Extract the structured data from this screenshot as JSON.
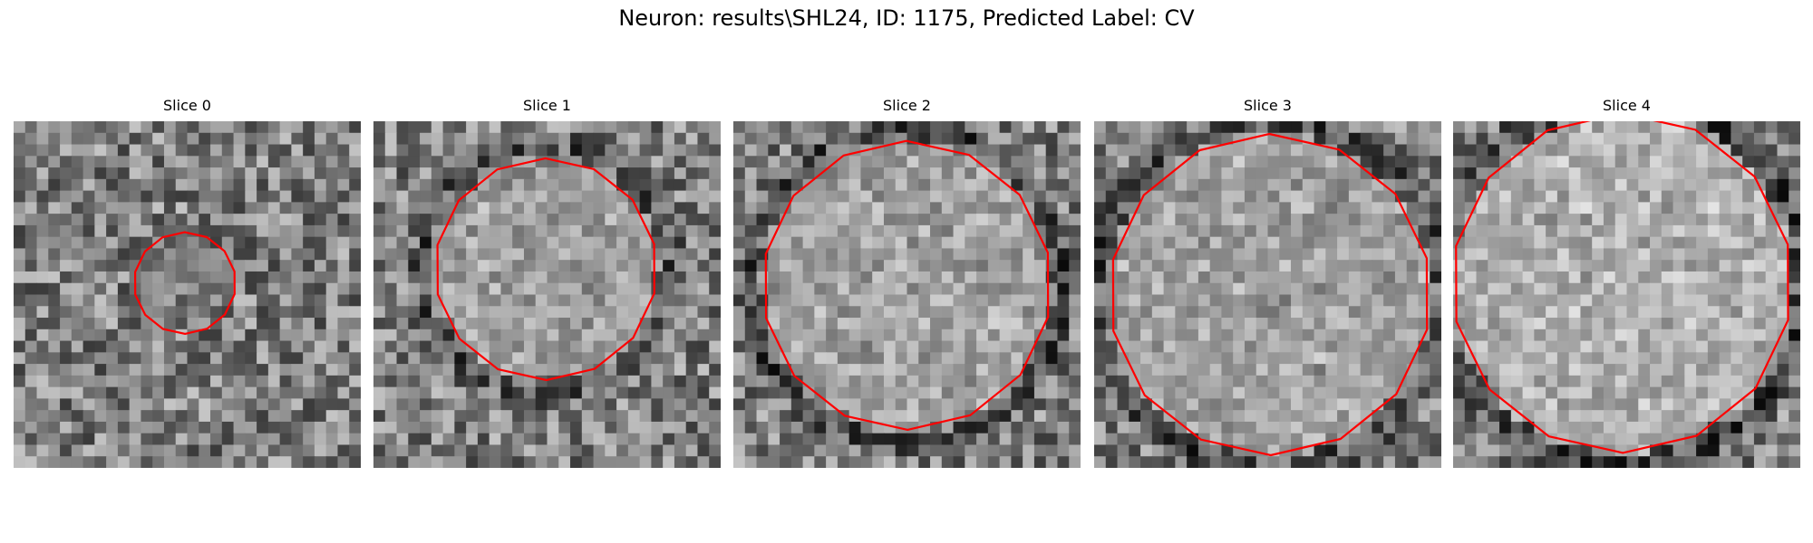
{
  "figure": {
    "title": "Neuron: results\\SHL24, ID: 1175, Predicted Label: CV",
    "grid_size": 30,
    "contour_color": "#ff0000",
    "colormap": "gray",
    "panels": [
      {
        "title": "Slice 0",
        "center": [
          14.8,
          14.0
        ],
        "radius": 4.4,
        "blob": 0.45,
        "ring": 0.0
      },
      {
        "title": "Slice 1",
        "center": [
          14.9,
          12.8
        ],
        "radius": 9.6,
        "blob": 0.78,
        "ring": -0.18
      },
      {
        "title": "Slice 2",
        "center": [
          15.0,
          14.2
        ],
        "radius": 12.5,
        "blob": 0.8,
        "ring": -0.22
      },
      {
        "title": "Slice 3",
        "center": [
          15.2,
          15.0
        ],
        "radius": 13.9,
        "blob": 0.78,
        "ring": -0.22
      },
      {
        "title": "Slice 4",
        "center": [
          14.6,
          14.0
        ],
        "radius": 14.7,
        "blob": 0.92,
        "ring": -0.28
      }
    ]
  }
}
